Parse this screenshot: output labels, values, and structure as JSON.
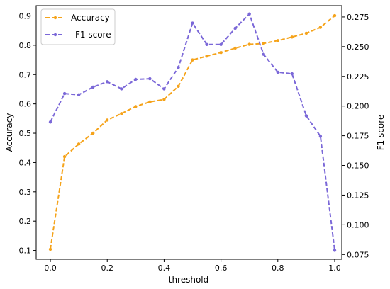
{
  "chart_data": {
    "type": "line",
    "xlabel": "threshold",
    "ylabel_left": "Accuracy",
    "ylabel_right": "F1 score",
    "x": [
      0.0,
      0.05,
      0.1,
      0.15,
      0.2,
      0.25,
      0.3,
      0.35,
      0.4,
      0.45,
      0.5,
      0.55,
      0.6,
      0.65,
      0.7,
      0.75,
      0.8,
      0.85,
      0.9,
      0.95,
      1.0
    ],
    "xlim": [
      -0.05,
      1.025
    ],
    "ylim_left": [
      0.07,
      0.935
    ],
    "ylim_right": [
      0.071,
      0.2845
    ],
    "xticks": [
      "0.0",
      "0.2",
      "0.4",
      "0.6",
      "0.8",
      "1.0"
    ],
    "yticks_left": [
      "0.1",
      "0.2",
      "0.3",
      "0.4",
      "0.5",
      "0.6",
      "0.7",
      "0.8",
      "0.9"
    ],
    "yticks_right": [
      "0.075",
      "0.100",
      "0.125",
      "0.150",
      "0.175",
      "0.200",
      "0.225",
      "0.250",
      "0.275"
    ],
    "legend_position": "top-left",
    "grid": false,
    "series": [
      {
        "name": "Accuracy",
        "axis": "left",
        "color": "#f5a31a",
        "values": [
          0.104,
          0.42,
          0.463,
          0.5,
          0.545,
          0.567,
          0.591,
          0.607,
          0.615,
          0.66,
          0.75,
          0.763,
          0.775,
          0.79,
          0.803,
          0.806,
          0.816,
          0.828,
          0.841,
          0.861,
          0.901
        ]
      },
      {
        "name": "F1 score",
        "axis": "right",
        "color": "#7b68d8",
        "values": [
          0.1865,
          0.2105,
          0.2095,
          0.216,
          0.2205,
          0.2145,
          0.2225,
          0.223,
          0.2145,
          0.2325,
          0.2698,
          0.2518,
          0.2518,
          0.2655,
          0.2775,
          0.2435,
          0.2285,
          0.2272,
          0.1918,
          0.1745,
          0.0785
        ]
      }
    ]
  }
}
